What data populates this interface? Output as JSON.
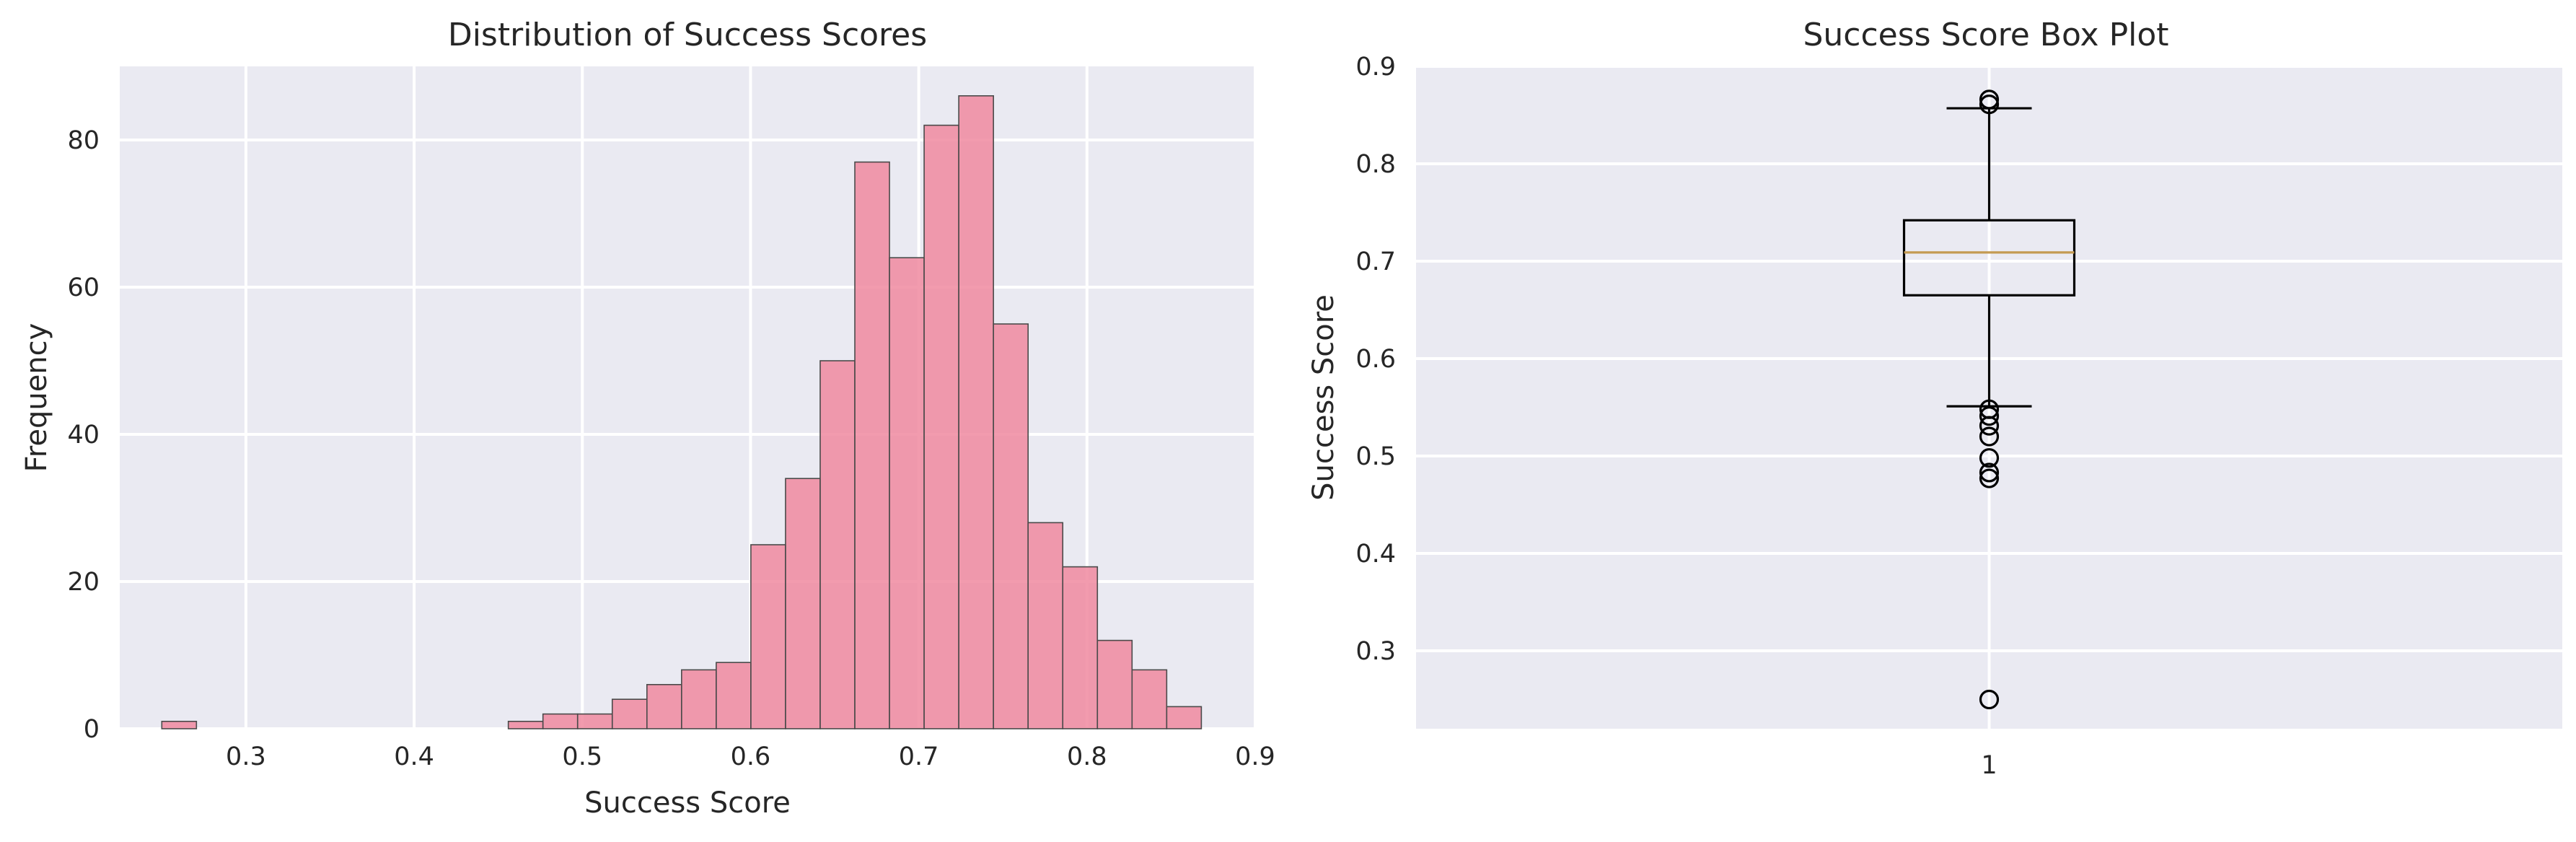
{
  "chart_data": [
    {
      "type": "bar",
      "subtype": "histogram",
      "title": "Distribution of Success Scores",
      "xlabel": "Success Score",
      "ylabel": "Frequency",
      "xlim": [
        0.225,
        0.9
      ],
      "ylim": [
        0,
        90
      ],
      "xticks": [
        0.3,
        0.4,
        0.5,
        0.6,
        0.7,
        0.8,
        0.9
      ],
      "yticks": [
        0,
        20,
        40,
        60,
        80
      ],
      "grid": true,
      "bin_edges": [
        0.25,
        0.2706,
        0.2912,
        0.3118,
        0.3324,
        0.353,
        0.3736,
        0.3942,
        0.4148,
        0.4354,
        0.456,
        0.4766,
        0.4972,
        0.5178,
        0.5384,
        0.559,
        0.5796,
        0.6002,
        0.6208,
        0.6414,
        0.662,
        0.6826,
        0.7032,
        0.7238,
        0.7444,
        0.765,
        0.7856,
        0.8062,
        0.8268,
        0.8474,
        0.868
      ],
      "counts": [
        1,
        0,
        0,
        0,
        0,
        0,
        0,
        0,
        0,
        0,
        1,
        2,
        2,
        4,
        6,
        8,
        9,
        25,
        34,
        50,
        77,
        64,
        82,
        86,
        55,
        28,
        22,
        12,
        8,
        3
      ],
      "bar_color": "#f08aa0"
    },
    {
      "type": "box",
      "title": "Success Score Box Plot",
      "xlabel": "",
      "ylabel": "Success Score",
      "categories": [
        "1"
      ],
      "ylim": [
        0.22,
        0.9
      ],
      "yticks": [
        0.3,
        0.4,
        0.5,
        0.6,
        0.7,
        0.8,
        0.9
      ],
      "grid": true,
      "box": {
        "q1": 0.665,
        "median": 0.709,
        "q3": 0.742,
        "whisker_low": 0.551,
        "whisker_high": 0.857
      },
      "outliers": [
        0.866,
        0.861,
        0.548,
        0.541,
        0.531,
        0.52,
        0.498,
        0.483,
        0.477,
        0.25
      ],
      "median_color": "#c49a52"
    }
  ]
}
